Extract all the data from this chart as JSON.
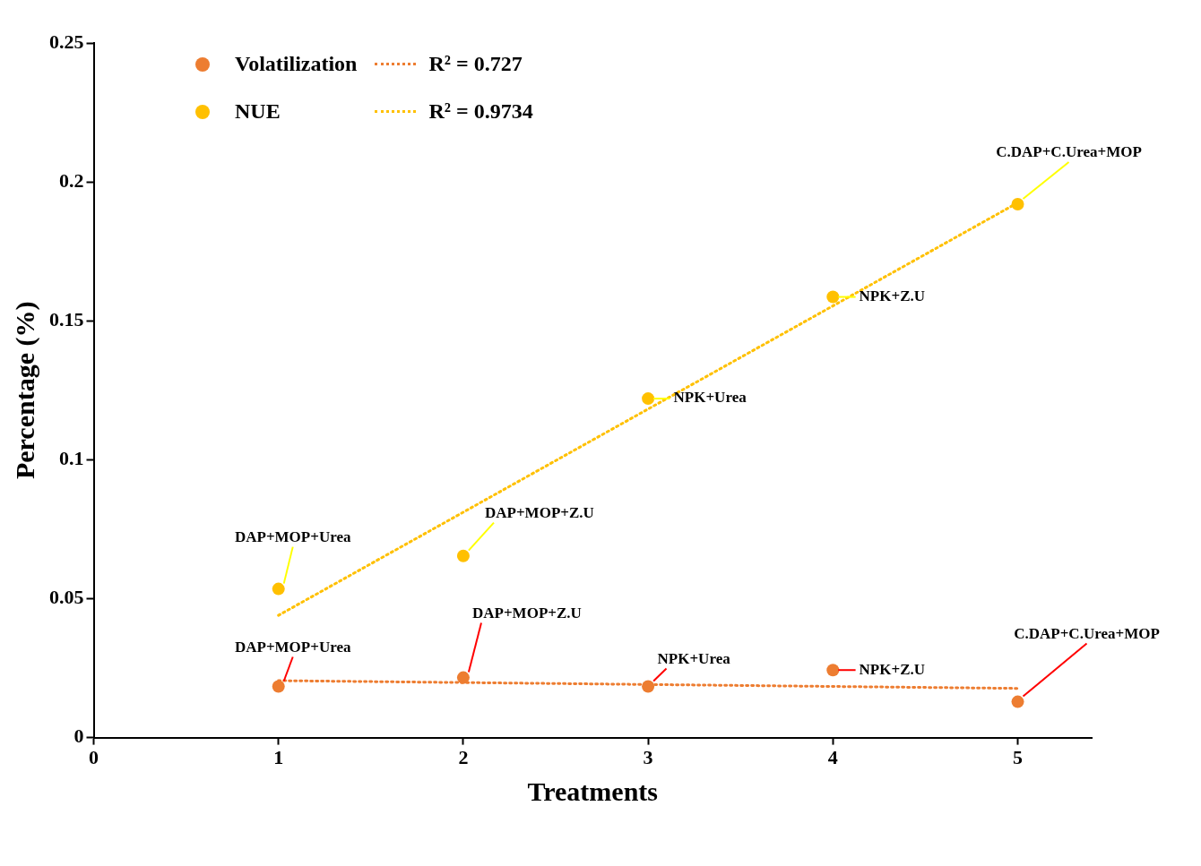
{
  "chart_data": {
    "type": "scatter",
    "xlabel": "Treatments",
    "ylabel": "Percentage (%)",
    "xlim": [
      0,
      5.4
    ],
    "xticks": [
      0,
      1,
      2,
      3,
      4,
      5
    ],
    "ylim": [
      0,
      0.25
    ],
    "yticks": [
      0,
      0.05,
      0.1,
      0.15,
      0.2,
      0.25
    ],
    "grid": false,
    "legend": "top left",
    "marker": "circle",
    "series": [
      {
        "name": "Volatilization",
        "color": "#ed7d31",
        "x": [
          1,
          2,
          3,
          4,
          5
        ],
        "values": [
          0.0184,
          0.0216,
          0.0184,
          0.0243,
          0.0129
        ]
      },
      {
        "name": "R² = 0.727",
        "type": "line",
        "color": "#ed7d31",
        "line_style": "dotted",
        "marker": "none",
        "x": [
          1,
          5
        ],
        "values": [
          0.0205,
          0.0177
        ]
      },
      {
        "name": "NUE",
        "color": "#ffc000",
        "x": [
          1,
          2,
          3,
          4,
          5
        ],
        "values": [
          0.0535,
          0.0654,
          0.122,
          0.1586,
          0.192
        ]
      },
      {
        "name": "R² = 0.9734",
        "type": "line",
        "color": "#ffc000",
        "line_style": "dotted",
        "marker": "none",
        "x": [
          1,
          5
        ],
        "values": [
          0.044,
          0.1925
        ]
      }
    ],
    "annotations": [
      {
        "text": "DAP+MOP+Urea",
        "x": 1,
        "y": 0.0535
      },
      {
        "text": "DAP+MOP+Z.U",
        "x": 2,
        "y": 0.0654
      },
      {
        "text": "NPK+Urea",
        "x": 3,
        "y": 0.122
      },
      {
        "text": "NPK+Z.U",
        "x": 4,
        "y": 0.1586
      },
      {
        "text": "C.DAP+C.Urea+MOP",
        "x": 5,
        "y": 0.192
      },
      {
        "text": "DAP+MOP+Urea",
        "x": 1,
        "y": 0.0184
      },
      {
        "text": "DAP+MOP+Z.U",
        "x": 2,
        "y": 0.0216
      },
      {
        "text": "NPK+Urea",
        "x": 3,
        "y": 0.0184
      },
      {
        "text": "NPK+Z.U",
        "x": 4,
        "y": 0.0243
      },
      {
        "text": "C.DAP+C.Urea+MOP",
        "x": 5,
        "y": 0.0129
      }
    ]
  }
}
